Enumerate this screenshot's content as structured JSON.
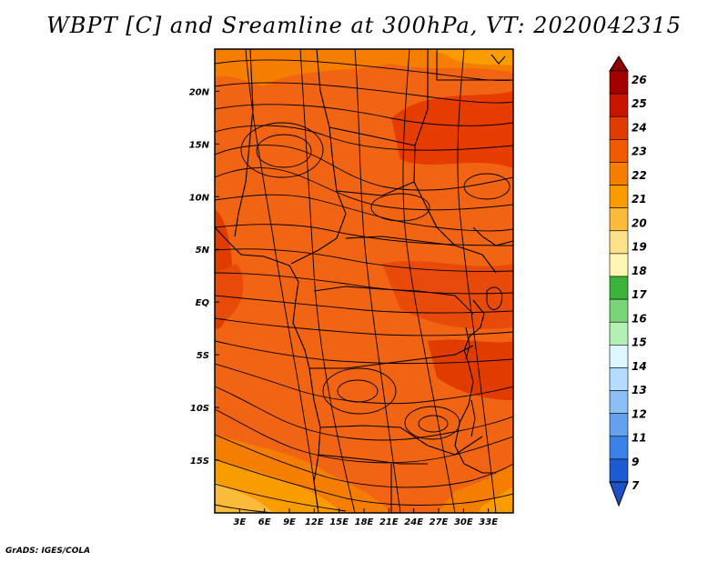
{
  "title": "WBPT [C] and Sreamline at 300hPa, VT: 2020042315",
  "footer": "GrADS: IGES/COLA",
  "map": {
    "lon_range": [
      0,
      36
    ],
    "lat_range": [
      -20,
      24
    ],
    "lon_ticks": [
      "3E",
      "6E",
      "9E",
      "12E",
      "15E",
      "18E",
      "21E",
      "24E",
      "27E",
      "30E",
      "33E"
    ],
    "lat_ticks": [
      "20N",
      "15N",
      "10N",
      "5N",
      "EQ",
      "5S",
      "10S",
      "15S"
    ],
    "variable": "wet-bulb potential temperature",
    "overlay": "streamlines"
  },
  "colorbar": {
    "labels": [
      "26",
      "25",
      "24",
      "23",
      "22",
      "21",
      "20",
      "19",
      "18",
      "17",
      "16",
      "15",
      "14",
      "13",
      "12",
      "11",
      "9",
      "7"
    ],
    "colors": [
      "#a50000",
      "#c81400",
      "#e03c00",
      "#f05a00",
      "#f57d00",
      "#f99c00",
      "#fbbb3a",
      "#fde08a",
      "#fff5b4",
      "#3cb43c",
      "#78d678",
      "#b4f0b4",
      "#ddf6ff",
      "#b4dcff",
      "#8cc0f5",
      "#64a0ec",
      "#3c82e6",
      "#1e5ad2"
    ],
    "top_color": "#8c0000",
    "bottom_color": "#1e50c8"
  }
}
